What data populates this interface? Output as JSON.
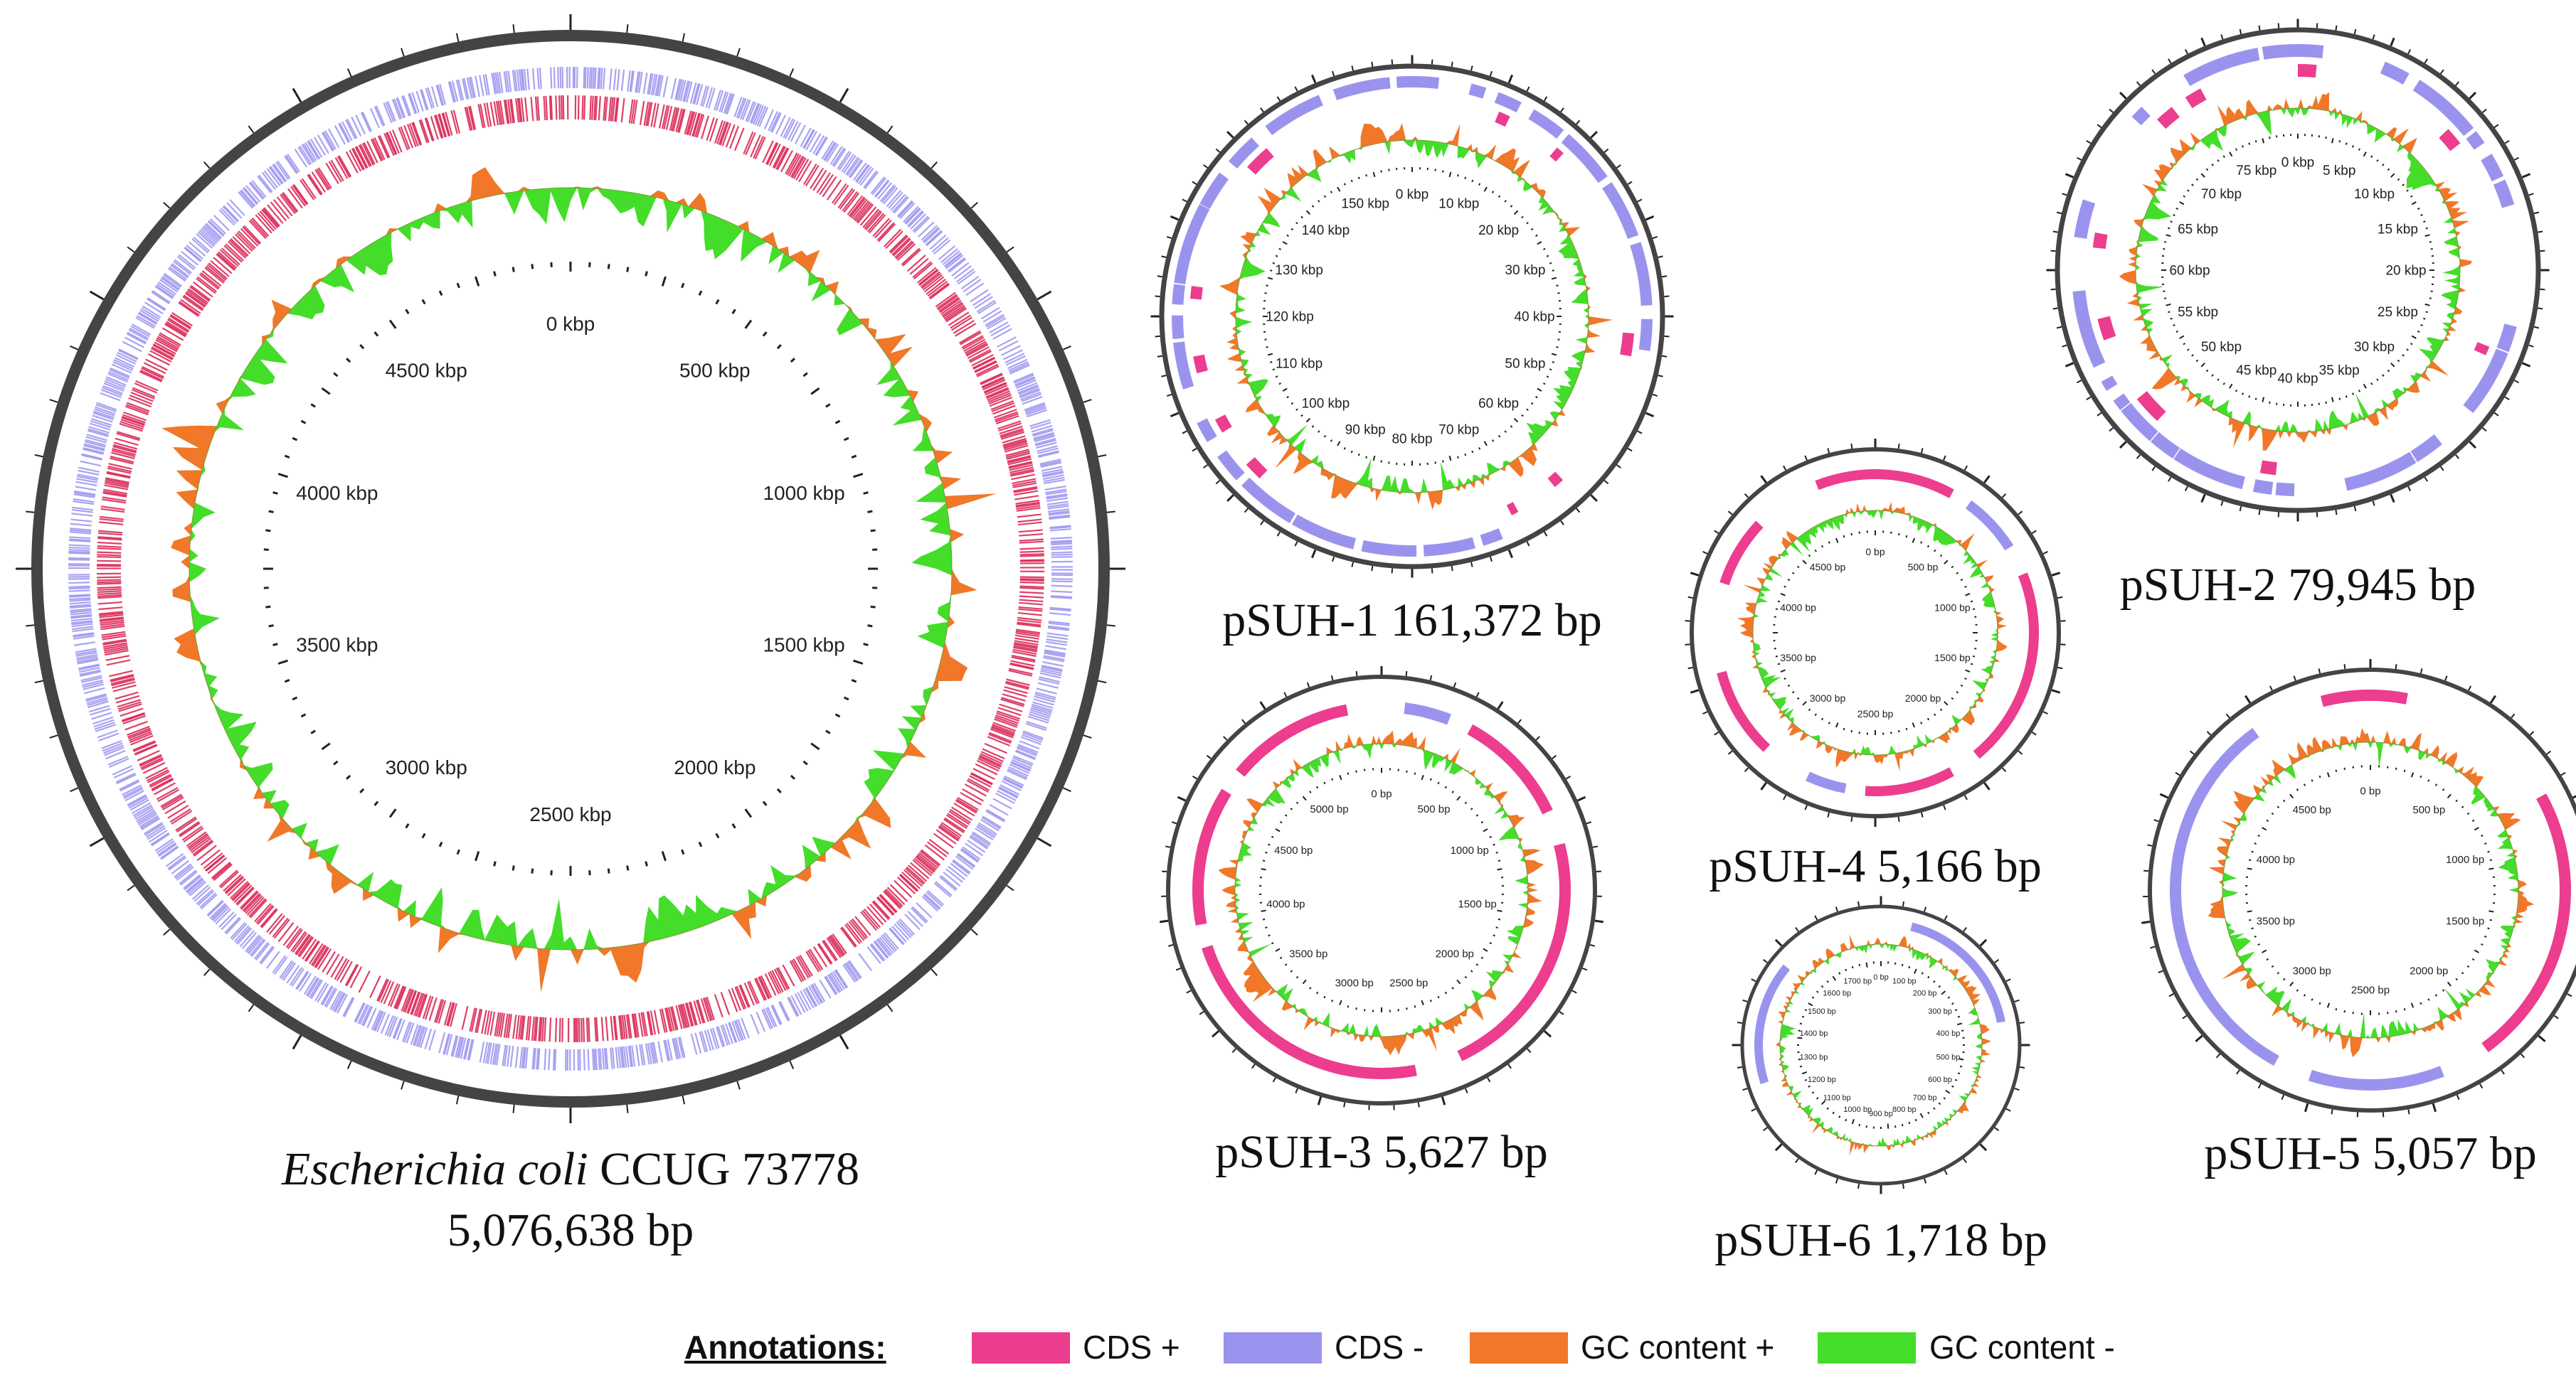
{
  "colors": {
    "cds_plus": "#ec3d8e",
    "cds_minus": "#9a93ee",
    "gc_plus": "#f07828",
    "gc_minus": "#44dd2a",
    "chromosome_cds_plus": "#d81e4e",
    "backbone": "#444444"
  },
  "maps": [
    {
      "id": "chromosome",
      "style": "chromosome",
      "label_italic": "Escherichia coli",
      "label_rest": "CCUG 73778",
      "label_line2": "5,076,638 bp",
      "tick_labels": [
        "0 kbp",
        "500 kbp",
        "1000 kbp",
        "1500 kbp",
        "2000 kbp",
        "2500 kbp",
        "3000 kbp",
        "3500 kbp",
        "4000 kbp",
        "4500 kbp"
      ],
      "seed": 7
    },
    {
      "id": "psuh1",
      "style": "plasmid",
      "label": "pSUH-1 161,372 bp",
      "tick_labels": [
        "0 kbp",
        "10 kbp",
        "20 kbp",
        "30 kbp",
        "40 kbp",
        "50 kbp",
        "60 kbp",
        "70 kbp",
        "80 kbp",
        "90 kbp",
        "100 kbp",
        "110 kbp",
        "120 kbp",
        "130 kbp",
        "140 kbp",
        "150 kbp"
      ],
      "seed": 11
    },
    {
      "id": "psuh2",
      "style": "plasmid",
      "label": "pSUH-2 79,945 bp",
      "tick_labels": [
        "0 kbp",
        "5 kbp",
        "10 kbp",
        "15 kbp",
        "20 kbp",
        "25 kbp",
        "30 kbp",
        "35 kbp",
        "40 kbp",
        "45 kbp",
        "50 kbp",
        "55 kbp",
        "60 kbp",
        "65 kbp",
        "70 kbp",
        "75 kbp"
      ],
      "seed": 23
    },
    {
      "id": "psuh3",
      "style": "small",
      "label": "pSUH-3 5,627 bp",
      "tick_labels": [
        "0 bp",
        "500 bp",
        "1000 bp",
        "1500 bp",
        "2000 bp",
        "2500 bp",
        "3000 bp",
        "3500 bp",
        "4000 bp",
        "4500 bp",
        "5000 bp"
      ],
      "arcs": [
        {
          "s": 0.02,
          "e": 0.06,
          "strand": "minus"
        },
        {
          "s": 0.08,
          "e": 0.18,
          "strand": "plus"
        },
        {
          "s": 0.21,
          "e": 0.43,
          "strand": "plus"
        },
        {
          "s": 0.47,
          "e": 0.7,
          "strand": "plus"
        },
        {
          "s": 0.72,
          "e": 0.84,
          "strand": "plus"
        },
        {
          "s": 0.86,
          "e": 0.97,
          "strand": "plus"
        }
      ],
      "seed": 31
    },
    {
      "id": "psuh4",
      "style": "small",
      "label": "pSUH-4 5,166 bp",
      "tick_labels": [
        "0 bp",
        "500 bp",
        "1000 bp",
        "1500 bp",
        "2000 bp",
        "2500 bp",
        "3000 bp",
        "3500 bp",
        "4000 bp",
        "4500 bp"
      ],
      "arcs": [
        {
          "s": 0.94,
          "e": 1.08,
          "strand": "plus"
        },
        {
          "s": 0.1,
          "e": 0.16,
          "strand": "minus"
        },
        {
          "s": 0.19,
          "e": 0.39,
          "strand": "plus"
        },
        {
          "s": 0.42,
          "e": 0.51,
          "strand": "plus"
        },
        {
          "s": 0.53,
          "e": 0.57,
          "strand": "minus"
        },
        {
          "s": 0.62,
          "e": 0.71,
          "strand": "plus"
        },
        {
          "s": 0.8,
          "e": 0.87,
          "strand": "plus"
        }
      ],
      "seed": 41
    },
    {
      "id": "psuh5",
      "style": "small",
      "label": "pSUH-5 5,057 bp",
      "tick_labels": [
        "0 bp",
        "500 bp",
        "1000 bp",
        "1500 bp",
        "2000 bp",
        "2500 bp",
        "3000 bp",
        "3500 bp",
        "4000 bp",
        "4500 bp"
      ],
      "arcs": [
        {
          "s": 0.96,
          "e": 0.03,
          "strand": "plus"
        },
        {
          "s": 0.17,
          "e": 0.4,
          "strand": "plus"
        },
        {
          "s": 0.44,
          "e": 0.55,
          "strand": "minus"
        },
        {
          "s": 0.58,
          "e": 0.9,
          "strand": "minus"
        }
      ],
      "seed": 53
    },
    {
      "id": "psuh6",
      "style": "tiny",
      "label": "pSUH-6 1,718 bp",
      "tick_labels": [
        "0 bp",
        "100 bp",
        "200 bp",
        "300 bp",
        "400 bp",
        "500 bp",
        "600 bp",
        "700 bp",
        "800 bp",
        "900 bp",
        "1000 bp",
        "1100 bp",
        "1200 bp",
        "1300 bp",
        "1400 bp",
        "1500 bp",
        "1600 bp",
        "1700 bp"
      ],
      "arcs": [
        {
          "s": 0.04,
          "e": 0.22,
          "strand": "minus"
        },
        {
          "s": 0.7,
          "e": 0.86,
          "strand": "minus"
        }
      ],
      "seed": 61
    }
  ],
  "legend": {
    "title": "Annotations:",
    "items": [
      {
        "label": "CDS +",
        "color": "#ec3d8e"
      },
      {
        "label": "CDS -",
        "color": "#9a93ee"
      },
      {
        "label": "GC content +",
        "color": "#f07828"
      },
      {
        "label": "GC content -",
        "color": "#44dd2a"
      }
    ]
  }
}
